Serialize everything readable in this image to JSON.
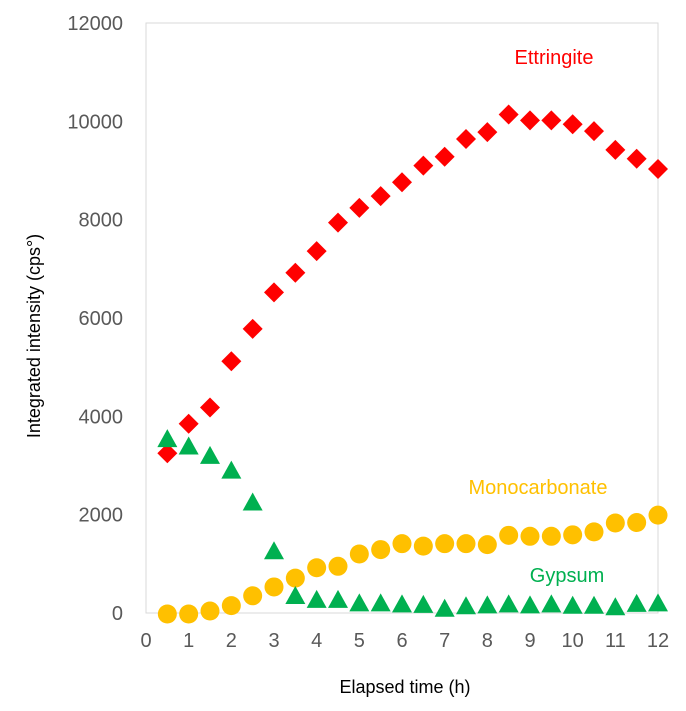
{
  "chart_data": {
    "type": "scatter",
    "title": "",
    "xlabel": "Elapsed time (h)",
    "ylabel": "Integrated intensity (cps°)",
    "xlim": [
      0,
      12
    ],
    "ylim": [
      0,
      12000
    ],
    "x_ticks": [
      "0",
      "1",
      "2",
      "3",
      "4",
      "5",
      "6",
      "7",
      "8",
      "9",
      "10",
      "11",
      "12"
    ],
    "y_ticks": [
      "0",
      "2000",
      "4000",
      "6000",
      "8000",
      "10000",
      "12000"
    ],
    "grid": false,
    "legend": "inline labels",
    "series": [
      {
        "name": "Ettringite",
        "marker": "diamond",
        "color": "#FF0000",
        "x": [
          0.5,
          1,
          1.5,
          2,
          2.5,
          3,
          3.5,
          4,
          4.5,
          5,
          5.5,
          6,
          6.5,
          7,
          7.5,
          8,
          8.5,
          9,
          9.5,
          10,
          10.5,
          11,
          11.5,
          12
        ],
        "y": [
          3250,
          3850,
          4180,
          5120,
          5780,
          6520,
          6920,
          7360,
          7940,
          8240,
          8480,
          8760,
          9100,
          9280,
          9640,
          9780,
          10140,
          10020,
          10020,
          9940,
          9800,
          9420,
          9240,
          9030
        ]
      },
      {
        "name": "Monocarbonate",
        "marker": "circle",
        "color": "#FFC000",
        "x": [
          0.5,
          1,
          1.5,
          2,
          2.5,
          3,
          3.5,
          4,
          4.5,
          5,
          5.5,
          6,
          6.5,
          7,
          7.5,
          8,
          8.5,
          9,
          9.5,
          10,
          10.5,
          11,
          11.5,
          12
        ],
        "y": [
          -20,
          -20,
          40,
          150,
          350,
          530,
          710,
          920,
          950,
          1200,
          1290,
          1410,
          1360,
          1410,
          1410,
          1390,
          1580,
          1560,
          1560,
          1590,
          1650,
          1830,
          1840,
          1990
        ]
      },
      {
        "name": "Gypsum",
        "marker": "triangle",
        "color": "#00B050",
        "x": [
          0.5,
          1,
          1.5,
          2,
          2.5,
          3,
          3.5,
          4,
          4.5,
          5,
          5.5,
          6,
          6.5,
          7,
          7.5,
          8,
          8.5,
          9,
          9.5,
          10,
          10.5,
          11,
          11.5,
          12
        ],
        "y": [
          3520,
          3370,
          3180,
          2880,
          2230,
          1240,
          330,
          250,
          250,
          180,
          180,
          160,
          150,
          70,
          120,
          140,
          160,
          140,
          160,
          130,
          130,
          100,
          170,
          180
        ]
      }
    ]
  }
}
